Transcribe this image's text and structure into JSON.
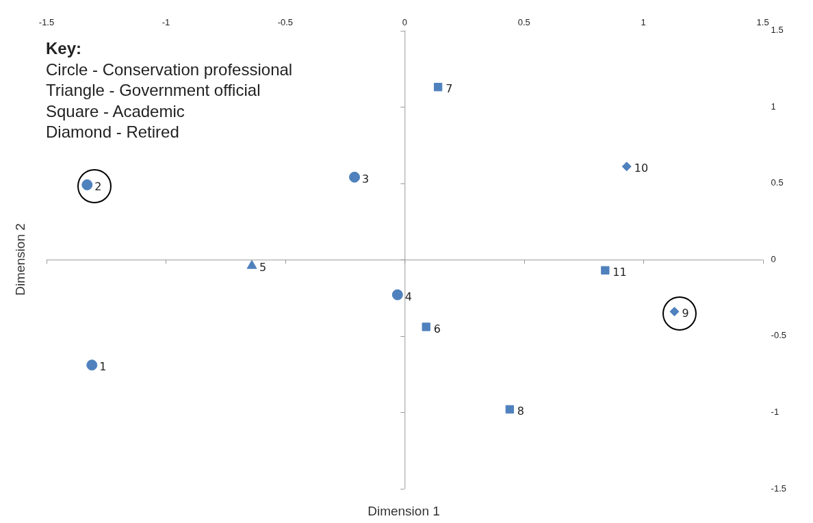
{
  "chart_data": {
    "type": "scatter",
    "xlabel": "Dimension 1",
    "ylabel": "Dimension 2",
    "annotations": [
      "Key:",
      "Circle - Conservation professional",
      "Triangle - Government official",
      "Square - Academic",
      "Diamond - Retired",
      {
        "text": "1",
        "x": -1.31,
        "y": -0.69
      },
      {
        "text": "2",
        "x": -1.33,
        "y": 0.49
      },
      {
        "text": "3",
        "x": -0.21,
        "y": 0.54
      },
      {
        "text": "4",
        "x": -0.03,
        "y": -0.23
      },
      {
        "text": "5",
        "x": -0.64,
        "y": -0.04
      },
      {
        "text": "6",
        "x": 0.09,
        "y": -0.44
      },
      {
        "text": "7",
        "x": 0.14,
        "y": 1.13
      },
      {
        "text": "8",
        "x": 0.44,
        "y": -0.98
      },
      {
        "text": "9",
        "x": 1.13,
        "y": -0.34
      },
      {
        "text": "10",
        "x": 0.93,
        "y": 0.61
      },
      {
        "text": "11",
        "x": 0.84,
        "y": -0.07
      }
    ],
    "xlim": [
      -1.5,
      1.5
    ],
    "xticks": [
      -1.5,
      -1,
      -0.5,
      0,
      0.5,
      1,
      1.5
    ],
    "ylim": [
      -1.5,
      1.5
    ],
    "yticks": [
      -1.5,
      -1,
      -0.5,
      0,
      0.5,
      1,
      1.5
    ],
    "series": [
      {
        "marker": "circle",
        "color": "#4f81bd",
        "x": [
          -1.31,
          -1.33,
          -0.21,
          -0.03
        ],
        "values": [
          -0.69,
          0.49,
          0.54,
          -0.23
        ]
      },
      {
        "marker": "triangle",
        "color": "#4f81bd",
        "x": [
          -0.64
        ],
        "values": [
          -0.04
        ]
      },
      {
        "marker": "square",
        "color": "#4f81bd",
        "x": [
          0.09,
          0.14,
          0.44,
          0.84
        ],
        "values": [
          -0.44,
          1.13,
          -0.98,
          -0.07
        ]
      },
      {
        "marker": "diamond",
        "color": "#4f81bd",
        "x": [
          1.13,
          0.93
        ],
        "values": [
          -0.34,
          0.61
        ]
      }
    ]
  }
}
